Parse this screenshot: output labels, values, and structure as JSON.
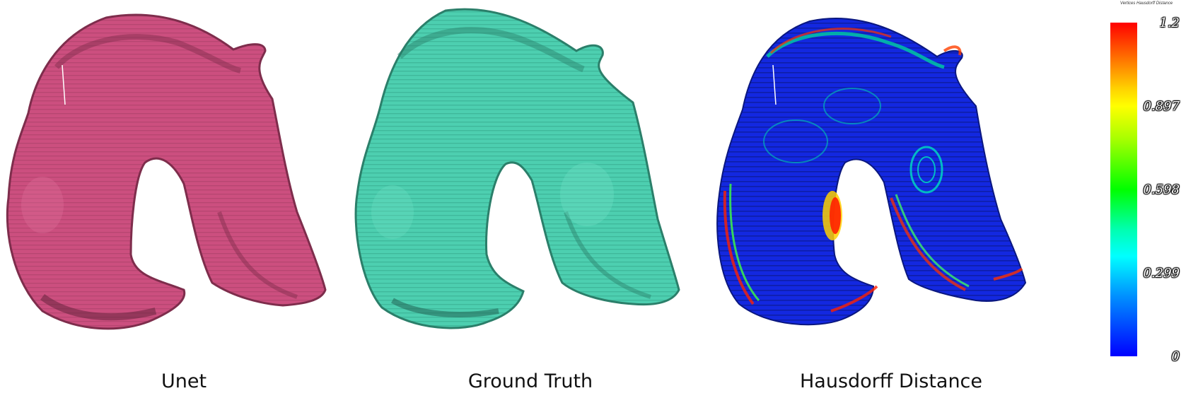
{
  "panels": [
    {
      "caption": "Unet",
      "fill": "#cc4f7f",
      "shade": "#7e2d4c",
      "highlight": "#de6f9b"
    },
    {
      "caption": "Ground Truth",
      "fill": "#4dcfb0",
      "shade": "#2b7f6a",
      "highlight": "#6fe0c5"
    },
    {
      "caption": "Hausdorff Distance",
      "fill": "#1328e0",
      "shade": "#0a1780",
      "highlight": "#00a0ff"
    }
  ],
  "colorbar": {
    "title": "Vertices Hausdorff Distance",
    "ticks": [
      "1.2",
      "0.897",
      "0.598",
      "0.299",
      "0"
    ],
    "colors": [
      "#ff0000",
      "#ffff00",
      "#00ff00",
      "#00ffff",
      "#0000ff"
    ]
  }
}
